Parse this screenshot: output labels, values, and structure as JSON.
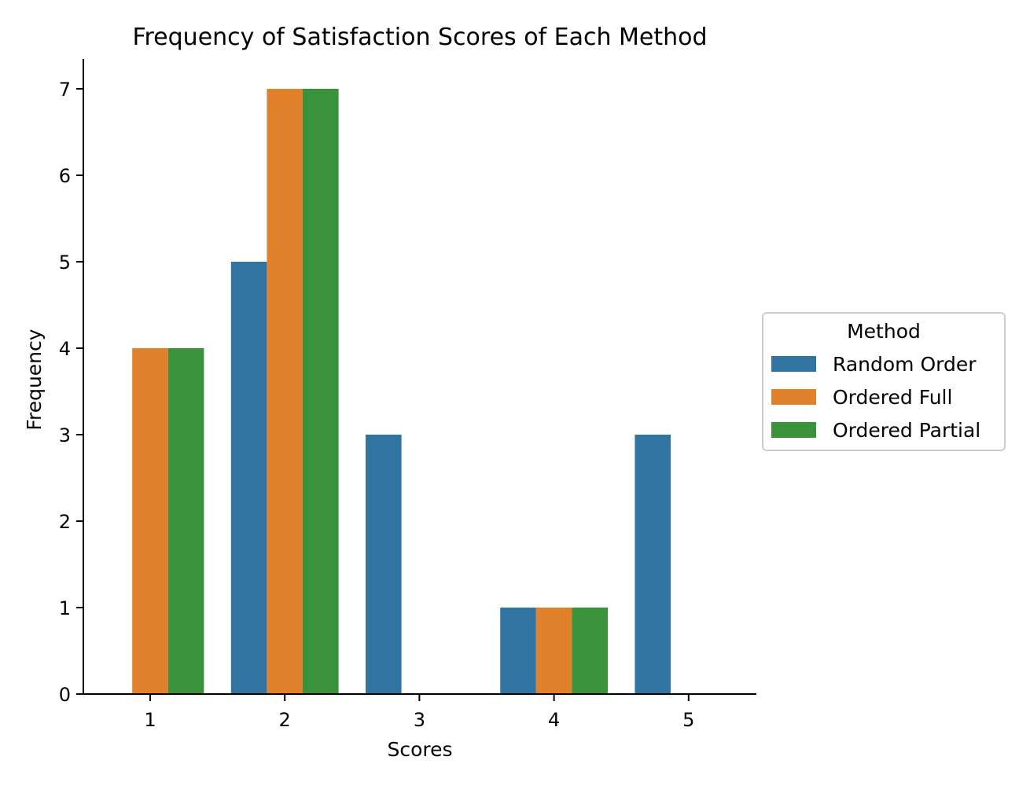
{
  "chart_data": {
    "type": "bar",
    "title": "Frequency of Satisfaction Scores of Each Method",
    "xlabel": "Scores",
    "ylabel": "Frequency",
    "categories": [
      "1",
      "2",
      "3",
      "4",
      "5"
    ],
    "series": [
      {
        "name": "Random Order",
        "values": [
          0,
          5,
          3,
          1,
          3
        ],
        "color": "#3274a1"
      },
      {
        "name": "Ordered Full",
        "values": [
          4,
          7,
          0,
          1,
          0
        ],
        "color": "#e1812c"
      },
      {
        "name": "Ordered Partial",
        "values": [
          4,
          7,
          0,
          1,
          0
        ],
        "color": "#3a923a"
      }
    ],
    "ylim": [
      0,
      7.35
    ],
    "yticks": [
      "0",
      "1",
      "2",
      "3",
      "4",
      "5",
      "6",
      "7"
    ],
    "grid": false,
    "legend": {
      "title": "Method",
      "placement": "center-right outside"
    }
  }
}
